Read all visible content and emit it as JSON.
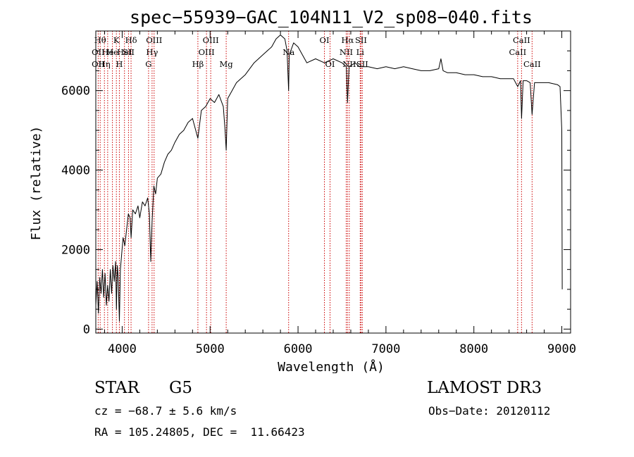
{
  "chart_data": {
    "type": "line",
    "title": "spec−55939−GAC_104N11_V2_sp08−040.fits",
    "xlabel": "Wavelength (Å)",
    "ylabel": "Flux (relative)",
    "xlim": [
      3700,
      9100
    ],
    "ylim": [
      -100,
      7500
    ],
    "xticks": [
      4000,
      5000,
      6000,
      7000,
      8000,
      9000
    ],
    "yticks": [
      0,
      2000,
      4000,
      6000
    ],
    "x_minor_step": 200,
    "y_minor_step": 500,
    "series": [
      {
        "name": "spectrum",
        "points": [
          [
            3700,
            600
          ],
          [
            3715,
            1200
          ],
          [
            3730,
            400
          ],
          [
            3745,
            1300
          ],
          [
            3760,
            900
          ],
          [
            3775,
            1500
          ],
          [
            3790,
            800
          ],
          [
            3805,
            1400
          ],
          [
            3820,
            600
          ],
          [
            3835,
            1100
          ],
          [
            3850,
            700
          ],
          [
            3865,
            1500
          ],
          [
            3880,
            900
          ],
          [
            3895,
            1600
          ],
          [
            3910,
            1200
          ],
          [
            3925,
            1700
          ],
          [
            3935,
            500
          ],
          [
            3945,
            1600
          ],
          [
            3955,
            1300
          ],
          [
            3968,
            200
          ],
          [
            3980,
            1500
          ],
          [
            3995,
            1900
          ],
          [
            4010,
            2300
          ],
          [
            4030,
            2100
          ],
          [
            4050,
            2500
          ],
          [
            4070,
            2900
          ],
          [
            4090,
            2800
          ],
          [
            4101,
            2300
          ],
          [
            4120,
            3000
          ],
          [
            4150,
            2900
          ],
          [
            4180,
            3100
          ],
          [
            4200,
            2800
          ],
          [
            4230,
            3200
          ],
          [
            4260,
            3100
          ],
          [
            4290,
            3300
          ],
          [
            4310,
            2900
          ],
          [
            4325,
            1700
          ],
          [
            4340,
            2700
          ],
          [
            4360,
            3600
          ],
          [
            4380,
            3400
          ],
          [
            4400,
            3800
          ],
          [
            4440,
            3900
          ],
          [
            4480,
            4200
          ],
          [
            4520,
            4400
          ],
          [
            4560,
            4500
          ],
          [
            4600,
            4700
          ],
          [
            4650,
            4900
          ],
          [
            4700,
            5000
          ],
          [
            4750,
            5200
          ],
          [
            4800,
            5300
          ],
          [
            4861,
            4800
          ],
          [
            4900,
            5500
          ],
          [
            4950,
            5600
          ],
          [
            5000,
            5800
          ],
          [
            5050,
            5700
          ],
          [
            5100,
            5900
          ],
          [
            5150,
            5600
          ],
          [
            5170,
            5000
          ],
          [
            5183,
            4500
          ],
          [
            5200,
            5800
          ],
          [
            5300,
            6200
          ],
          [
            5400,
            6400
          ],
          [
            5500,
            6700
          ],
          [
            5600,
            6900
          ],
          [
            5700,
            7100
          ],
          [
            5750,
            7300
          ],
          [
            5800,
            7400
          ],
          [
            5850,
            7300
          ],
          [
            5875,
            7000
          ],
          [
            5893,
            6000
          ],
          [
            5900,
            6900
          ],
          [
            5950,
            7200
          ],
          [
            6000,
            7100
          ],
          [
            6050,
            6900
          ],
          [
            6100,
            6700
          ],
          [
            6200,
            6800
          ],
          [
            6300,
            6700
          ],
          [
            6400,
            6800
          ],
          [
            6500,
            6700
          ],
          [
            6550,
            6600
          ],
          [
            6563,
            5700
          ],
          [
            6580,
            6600
          ],
          [
            6650,
            6700
          ],
          [
            6700,
            6600
          ],
          [
            6800,
            6600
          ],
          [
            6900,
            6550
          ],
          [
            7000,
            6600
          ],
          [
            7100,
            6550
          ],
          [
            7200,
            6600
          ],
          [
            7300,
            6550
          ],
          [
            7400,
            6500
          ],
          [
            7500,
            6500
          ],
          [
            7600,
            6550
          ],
          [
            7625,
            6800
          ],
          [
            7650,
            6500
          ],
          [
            7700,
            6450
          ],
          [
            7800,
            6450
          ],
          [
            7900,
            6400
          ],
          [
            8000,
            6400
          ],
          [
            8100,
            6350
          ],
          [
            8200,
            6350
          ],
          [
            8300,
            6300
          ],
          [
            8400,
            6300
          ],
          [
            8450,
            6300
          ],
          [
            8498,
            6100
          ],
          [
            8530,
            6250
          ],
          [
            8542,
            5300
          ],
          [
            8560,
            6250
          ],
          [
            8600,
            6250
          ],
          [
            8640,
            6200
          ],
          [
            8662,
            5400
          ],
          [
            8690,
            6200
          ],
          [
            8750,
            6200
          ],
          [
            8850,
            6200
          ],
          [
            8950,
            6150
          ],
          [
            8980,
            6100
          ],
          [
            9000,
            5000
          ],
          [
            9005,
            1000
          ]
        ]
      }
    ],
    "lines": [
      {
        "wave": 3727,
        "labels": [
          {
            "text": "OII",
            "row": 2
          },
          {
            "text": "OII",
            "row": 3
          }
        ]
      },
      {
        "wave": 3750,
        "labels": [
          {
            "text": "Hθ",
            "row": 1
          }
        ]
      },
      {
        "wave": 3798,
        "labels": [
          {
            "text": "Hη",
            "row": 3
          }
        ]
      },
      {
        "wave": 3835,
        "labels": [
          {
            "text": "He",
            "row": 2
          }
        ]
      },
      {
        "wave": 3889,
        "labels": [
          {
            "text": "He",
            "row": 2
          }
        ]
      },
      {
        "wave": 3934,
        "labels": [
          {
            "text": "K",
            "row": 1
          }
        ]
      },
      {
        "wave": 3968,
        "labels": [
          {
            "text": "H",
            "row": 3
          }
        ]
      },
      {
        "wave": 4026,
        "labels": [
          {
            "text": "HeI",
            "row": 2
          }
        ]
      },
      {
        "wave": 4072,
        "labels": [
          {
            "text": "SII",
            "row": 2
          }
        ]
      },
      {
        "wave": 4101,
        "labels": [
          {
            "text": "Hδ",
            "row": 1
          }
        ]
      },
      {
        "wave": 4300,
        "labels": [
          {
            "text": "G",
            "row": 3
          }
        ]
      },
      {
        "wave": 4340,
        "labels": [
          {
            "text": "Hγ",
            "row": 2
          }
        ]
      },
      {
        "wave": 4363,
        "labels": [
          {
            "text": "OIII",
            "row": 1
          }
        ]
      },
      {
        "wave": 4861,
        "labels": [
          {
            "text": "Hβ",
            "row": 3
          }
        ]
      },
      {
        "wave": 4959,
        "labels": [
          {
            "text": "OIII",
            "row": 2
          }
        ]
      },
      {
        "wave": 5007,
        "labels": [
          {
            "text": "OIII",
            "row": 1
          }
        ]
      },
      {
        "wave": 5183,
        "labels": [
          {
            "text": "Mg",
            "row": 3
          }
        ]
      },
      {
        "wave": 5893,
        "labels": [
          {
            "text": "Na",
            "row": 2
          }
        ]
      },
      {
        "wave": 6300,
        "labels": [
          {
            "text": "OI",
            "row": 1
          }
        ]
      },
      {
        "wave": 6364,
        "labels": [
          {
            "text": "OI",
            "row": 3
          }
        ]
      },
      {
        "wave": 6548,
        "labels": [
          {
            "text": "NII",
            "row": 2
          }
        ]
      },
      {
        "wave": 6563,
        "labels": [
          {
            "text": "Hα",
            "row": 1
          }
        ]
      },
      {
        "wave": 6583,
        "labels": [
          {
            "text": "NII",
            "row": 3
          }
        ]
      },
      {
        "wave": 6707,
        "labels": [
          {
            "text": "Li",
            "row": 2
          }
        ]
      },
      {
        "wave": 6716,
        "labels": [
          {
            "text": "SII",
            "row": 1
          }
        ]
      },
      {
        "wave": 6731,
        "labels": [
          {
            "text": "SII",
            "row": 3
          }
        ]
      },
      {
        "wave": 8498,
        "labels": [
          {
            "text": "CaII",
            "row": 2
          }
        ]
      },
      {
        "wave": 8542,
        "labels": [
          {
            "text": "CaII",
            "row": 1
          }
        ]
      },
      {
        "wave": 8662,
        "labels": [
          {
            "text": "CaII",
            "row": 3
          }
        ]
      }
    ]
  },
  "info": {
    "class_label": "STAR",
    "subclass": "G5",
    "cz": "cz = −68.7 ± 5.6 km/s",
    "coords": "RA = 105.24805, DEC =  11.66423",
    "survey": "LAMOST DR3",
    "obs_date": "Obs−Date: 20120112"
  },
  "colors": {
    "spectrum": "#000000",
    "line_marker": "#cc0000"
  }
}
